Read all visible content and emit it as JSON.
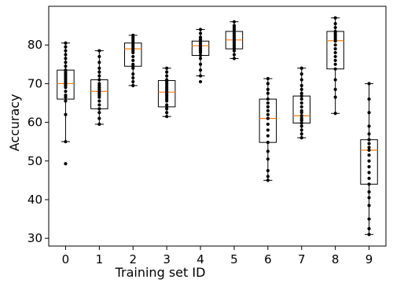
{
  "chart_data": {
    "type": "box",
    "title": "",
    "xlabel": "Training set ID",
    "ylabel": "Accuracy",
    "ylim": [
      28,
      90
    ],
    "yticks": [
      30,
      40,
      50,
      60,
      70,
      80
    ],
    "categories": [
      "0",
      "1",
      "2",
      "3",
      "4",
      "5",
      "6",
      "7",
      "8",
      "9"
    ],
    "colors": {
      "box": "#000000",
      "median": "#ff7f0e",
      "points": "#000000"
    },
    "boxes": [
      {
        "id": "0",
        "whisker_low": 55,
        "q1": 66,
        "median": 70,
        "q3": 73.5,
        "whisker_high": 80.5,
        "points": [
          49.3,
          55,
          62,
          65.5,
          66.5,
          67,
          68,
          69,
          69.5,
          70,
          70.5,
          71,
          71.5,
          72,
          72.5,
          73,
          73.5,
          74.5,
          75.5,
          76.5,
          77.5,
          78.5,
          79.5,
          80.5
        ]
      },
      {
        "id": "1",
        "whisker_low": 59.5,
        "q1": 63.5,
        "median": 68,
        "q3": 71,
        "whisker_high": 78.5,
        "points": [
          59.5,
          61,
          62.5,
          63.5,
          64.5,
          65.5,
          66.5,
          67,
          67.5,
          68,
          68.5,
          69,
          69.5,
          70,
          71,
          72,
          73,
          74,
          75.5,
          77,
          78.5
        ]
      },
      {
        "id": "2",
        "whisker_low": 69.5,
        "q1": 74.5,
        "median": 79,
        "q3": 80.5,
        "whisker_high": 82.5,
        "points": [
          69.5,
          70.5,
          71.5,
          72.5,
          74,
          74.5,
          75,
          76,
          77,
          78,
          78.5,
          79,
          79.5,
          80,
          80.5,
          81,
          81.5,
          82,
          82.5
        ]
      },
      {
        "id": "3",
        "whisker_low": 61.5,
        "q1": 64,
        "median": 67.8,
        "q3": 70.8,
        "whisker_high": 74,
        "points": [
          61.5,
          62.5,
          63.5,
          64,
          64.5,
          65.5,
          66,
          66.5,
          67,
          67.5,
          68,
          68.5,
          69,
          69.5,
          70,
          70.5,
          71,
          72,
          73,
          74
        ]
      },
      {
        "id": "4",
        "whisker_low": 72,
        "q1": 77.3,
        "median": 79.8,
        "q3": 81,
        "whisker_high": 84,
        "points": [
          70.5,
          72,
          73.5,
          75,
          76.5,
          77.3,
          78,
          78.5,
          79,
          79.5,
          80,
          80.5,
          81,
          81.5,
          82,
          83,
          84
        ]
      },
      {
        "id": "5",
        "whisker_low": 76.5,
        "q1": 79,
        "median": 81.3,
        "q3": 83.5,
        "whisker_high": 86,
        "points": [
          76.5,
          77.5,
          78.5,
          79,
          79.5,
          80,
          80.5,
          81,
          81.5,
          82,
          82.5,
          83,
          83.5,
          84,
          84.5,
          85,
          86
        ]
      },
      {
        "id": "6",
        "whisker_low": 45,
        "q1": 54.8,
        "median": 61,
        "q3": 66,
        "whisker_high": 71.3,
        "points": [
          45,
          46,
          47.5,
          50.5,
          52.5,
          54.8,
          56.5,
          58,
          59.5,
          61,
          62,
          63,
          64,
          65,
          66,
          67.5,
          68.5,
          70,
          71.3
        ]
      },
      {
        "id": "7",
        "whisker_low": 56,
        "q1": 59.8,
        "median": 61.7,
        "q3": 66.8,
        "whisker_high": 74,
        "points": [
          56,
          57,
          58,
          59,
          59.8,
          60.5,
          61,
          61.7,
          62.5,
          63,
          64,
          65,
          66,
          66.8,
          67.5,
          68.5,
          69.5,
          71,
          72.5,
          74
        ]
      },
      {
        "id": "8",
        "whisker_low": 62.3,
        "q1": 73.8,
        "median": 81.1,
        "q3": 83.5,
        "whisker_high": 87,
        "points": [
          62.3,
          66.5,
          68.5,
          71,
          73.8,
          75,
          76,
          77,
          78,
          79,
          80,
          81,
          81.5,
          82,
          82.5,
          83,
          83.5,
          84.5,
          85.5,
          87
        ]
      },
      {
        "id": "9",
        "whisker_low": 31,
        "q1": 44,
        "median": 52.8,
        "q3": 55.5,
        "whisker_high": 70,
        "points": [
          31,
          32.5,
          35,
          38.5,
          40.5,
          42,
          44,
          45.5,
          47,
          48.5,
          50,
          51.5,
          52.8,
          53.5,
          54.5,
          55.5,
          57,
          59,
          62.5,
          66,
          70
        ]
      }
    ]
  }
}
